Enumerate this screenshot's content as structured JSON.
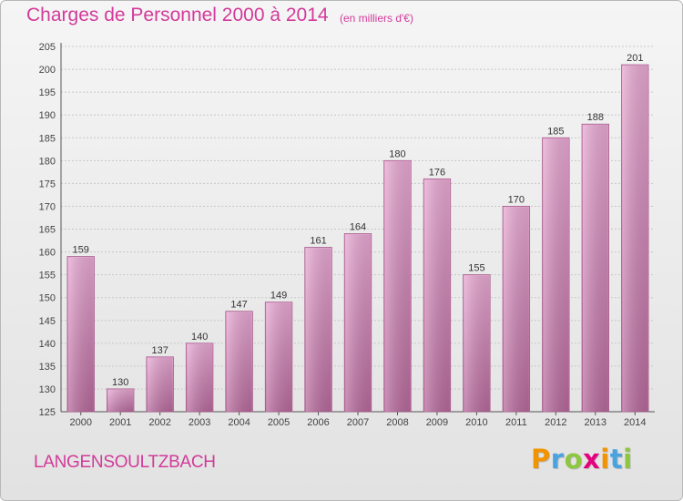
{
  "header": {
    "title": "Charges de Personnel 2000 à 2014",
    "subtitle": "(en milliers d'€)"
  },
  "footer": {
    "commune": "LANGENSOULTZBACH",
    "brand": {
      "letters": [
        "P",
        "r",
        "o",
        "x",
        "i",
        "t",
        "i"
      ],
      "colors": [
        "#f29400",
        "#4aa3df",
        "#8dc63f",
        "#e5007d",
        "#f29400",
        "#4aa3df",
        "#8dc63f"
      ]
    }
  },
  "chart_data": {
    "type": "bar",
    "title": "Charges de Personnel 2000 à 2014",
    "subtitle": "(en milliers d'€)",
    "categories": [
      "2000",
      "2001",
      "2002",
      "2003",
      "2004",
      "2005",
      "2006",
      "2007",
      "2008",
      "2009",
      "2010",
      "2011",
      "2012",
      "2013",
      "2014"
    ],
    "values": [
      159,
      130,
      137,
      140,
      147,
      149,
      161,
      164,
      180,
      176,
      155,
      170,
      185,
      188,
      201
    ],
    "ylim": [
      125,
      205
    ],
    "yticks": [
      125,
      130,
      135,
      140,
      145,
      150,
      155,
      160,
      165,
      170,
      175,
      180,
      185,
      190,
      195,
      200,
      205
    ],
    "grid": true,
    "bar_color": "#d98fbf",
    "legend": "none"
  }
}
